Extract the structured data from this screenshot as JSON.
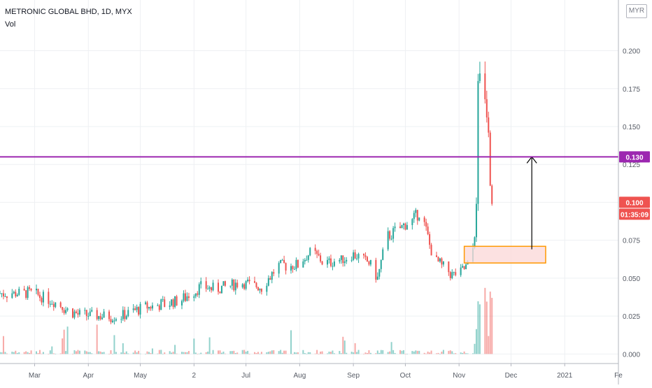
{
  "header": {
    "title": "METRONIC GLOBAL BHD, 1D, MYX",
    "volume_label": "Vol"
  },
  "currency_button": "MYR",
  "price_badges": {
    "resistance": "0.130",
    "last_price": "0.100",
    "countdown": "01:35:09"
  },
  "colors": {
    "up": "#26a69a",
    "down": "#ef5350",
    "resistance_line": "#9c27b0",
    "box_border": "#ff9800",
    "box_fill": "#fbdada",
    "grid": "#eef0f3",
    "axis_text": "#555a64"
  },
  "chart_data": {
    "type": "candlestick",
    "title": "METRONIC GLOBAL BHD, 1D, MYX",
    "ylim": [
      -0.004,
      0.215
    ],
    "y_ticks": [
      "0.200",
      "0.175",
      "0.150",
      "0.125",
      "0.100",
      "0.075",
      "0.050",
      "0.025",
      "0.000"
    ],
    "y_tick_values": [
      0.2,
      0.175,
      0.15,
      0.125,
      0.1,
      0.075,
      0.05,
      0.025,
      0.0
    ],
    "x_ticks": [
      "Mar",
      "Apr",
      "May",
      "2",
      "Jul",
      "Aug",
      "Sep",
      "Oct",
      "Nov",
      "Dec",
      "2021",
      "Fe"
    ],
    "x_tick_dates": [
      "2020-03-01",
      "2020-04-01",
      "2020-05-01",
      "2020-06-01",
      "2020-07-01",
      "2020-08-01",
      "2020-09-01",
      "2020-10-01",
      "2020-11-01",
      "2020-12-01",
      "2021-01-01",
      "2021-02-01"
    ],
    "x_range": [
      "2020-02-10",
      "2021-02-01"
    ],
    "grid": true,
    "resistance_level": 0.13,
    "last_price": 0.1,
    "support_zone": {
      "x_start": "2020-11-04",
      "x_end": "2020-12-21",
      "y_low": 0.06,
      "y_high": 0.071
    },
    "target_arrow": {
      "x": "2020-12-13",
      "y_from": 0.069,
      "y_to": 0.13
    },
    "price_anchors": [
      [
        "2020-02-10",
        0.04
      ],
      [
        "2020-02-28",
        0.04
      ],
      [
        "2020-03-05",
        0.038
      ],
      [
        "2020-03-15",
        0.033
      ],
      [
        "2020-03-22",
        0.027
      ],
      [
        "2020-04-05",
        0.025
      ],
      [
        "2020-04-20",
        0.025
      ],
      [
        "2020-05-01",
        0.03
      ],
      [
        "2020-05-15",
        0.033
      ],
      [
        "2020-05-25",
        0.036
      ],
      [
        "2020-06-05",
        0.044
      ],
      [
        "2020-06-15",
        0.043
      ],
      [
        "2020-06-28",
        0.047
      ],
      [
        "2020-07-10",
        0.044
      ],
      [
        "2020-07-20",
        0.058
      ],
      [
        "2020-07-31",
        0.059
      ],
      [
        "2020-08-08",
        0.068
      ],
      [
        "2020-08-15",
        0.06
      ],
      [
        "2020-08-25",
        0.062
      ],
      [
        "2020-09-01",
        0.066
      ],
      [
        "2020-09-10",
        0.06
      ],
      [
        "2020-09-15",
        0.05
      ],
      [
        "2020-09-20",
        0.077
      ],
      [
        "2020-09-28",
        0.083
      ],
      [
        "2020-10-05",
        0.088
      ],
      [
        "2020-10-10",
        0.095
      ],
      [
        "2020-10-15",
        0.072
      ],
      [
        "2020-10-18",
        0.062
      ],
      [
        "2020-10-22",
        0.058
      ],
      [
        "2020-10-28",
        0.052
      ],
      [
        "2020-11-02",
        0.054
      ],
      [
        "2020-11-06",
        0.058
      ],
      [
        "2020-11-09",
        0.07
      ],
      [
        "2020-11-11",
        0.09
      ],
      [
        "2020-11-12",
        0.17
      ],
      [
        "2020-11-15",
        0.19
      ],
      [
        "2020-11-17",
        0.16
      ],
      [
        "2020-11-19",
        0.12
      ],
      [
        "2020-11-20",
        0.108
      ],
      [
        "2020-11-21",
        0.1
      ]
    ],
    "volume_ylim": [
      0,
      0.055
    ],
    "volume_note": "volume histogram overlaid at the bottom, scaled into price pane"
  }
}
